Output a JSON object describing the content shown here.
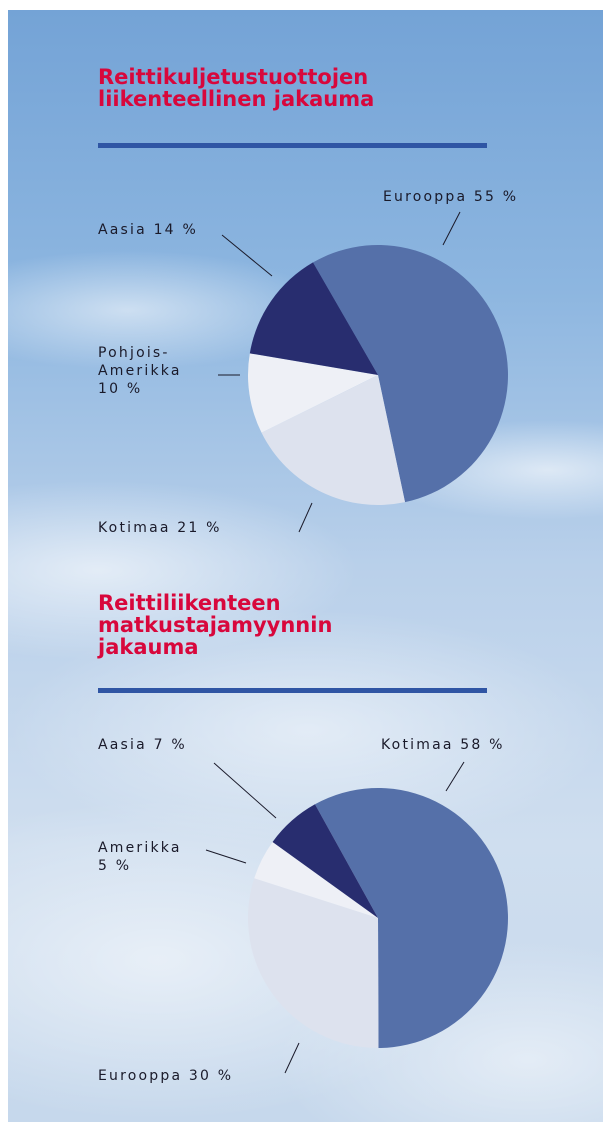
{
  "chart_data": [
    {
      "type": "pie",
      "title": "Reittikuljetustuottojen\nliikenteellinen jakauma",
      "categories": [
        "Eurooppa",
        "Kotimaa",
        "Pohjois-\nAmerikka",
        "Aasia"
      ],
      "values": [
        55,
        21,
        10,
        14
      ],
      "value_labels": [
        "55 %",
        "21 %",
        "10 %",
        "14 %"
      ],
      "colors": [
        "#5570a9",
        "#dde2ee",
        "#eef0f6",
        "#282d6f"
      ]
    },
    {
      "type": "pie",
      "title": "Reittiliikenteen\nmatkustajamyynnin\njakauma",
      "categories": [
        "Kotimaa",
        "Eurooppa",
        "Amerikka",
        "Aasia"
      ],
      "values": [
        58,
        30,
        5,
        7
      ],
      "value_labels": [
        "58 %",
        "30 %",
        "5 %",
        "7 %"
      ],
      "colors": [
        "#5570a9",
        "#dde2ee",
        "#eef0f6",
        "#282d6f"
      ]
    }
  ]
}
